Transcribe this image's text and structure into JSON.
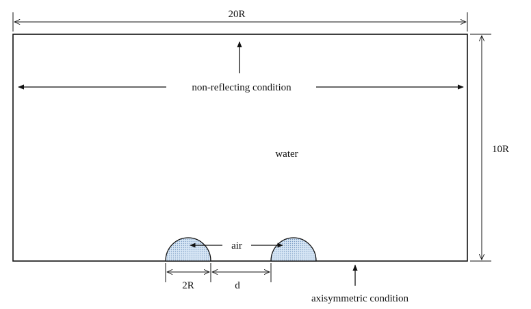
{
  "labels": {
    "width": "20R",
    "height": "10R",
    "top_boundary": "non-reflecting condition",
    "domain": "water",
    "bubble": "air",
    "bubble_diameter": "2R",
    "spacing": "d",
    "bottom_boundary": "axisymmetric condition"
  },
  "colors": {
    "line": "#111111",
    "bubble_fill": "#d7e6f5",
    "bubble_dots": "#7b9cc4"
  }
}
